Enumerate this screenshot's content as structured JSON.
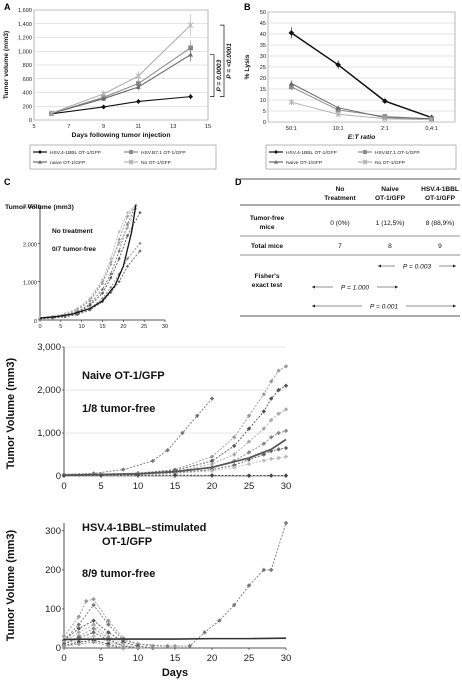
{
  "panel_labels": {
    "a": "A",
    "b": "B",
    "c": "C",
    "d": "D"
  },
  "chart_data": [
    {
      "id": "A",
      "type": "line",
      "xlabel": "Days following tumor injection",
      "ylabel": "Tumor volume (mm3)",
      "xlim": [
        5,
        15
      ],
      "ylim": [
        0,
        1600
      ],
      "xticks": [
        5,
        7,
        9,
        11,
        13,
        15
      ],
      "yticks": [
        0,
        200,
        400,
        600,
        800,
        1000,
        1200,
        1400,
        1600
      ],
      "ytick_labels": [
        "0",
        "200",
        "400",
        "600",
        "800",
        "1,000",
        "1,200",
        "1,400",
        "1,600"
      ],
      "series": [
        {
          "name": "HSV.4-1BBL OT-1/GFP",
          "color": "#111111",
          "marker": "diamond",
          "x": [
            6,
            9,
            11,
            14
          ],
          "y": [
            90,
            190,
            270,
            340
          ],
          "err": [
            20,
            25,
            35,
            40
          ]
        },
        {
          "name": "HSV.B7.1 OT-1/GFP",
          "color": "#8c8c8c",
          "marker": "square",
          "x": [
            6,
            9,
            11,
            14
          ],
          "y": [
            95,
            330,
            530,
            1050
          ],
          "err": [
            20,
            35,
            60,
            110
          ]
        },
        {
          "name": "naive OT-1/GFP",
          "color": "#6a6a6a",
          "marker": "triangle",
          "x": [
            6,
            9,
            11,
            14
          ],
          "y": [
            95,
            310,
            480,
            950
          ],
          "err": [
            20,
            35,
            55,
            100
          ]
        },
        {
          "name": "No OT-1/GFP",
          "color": "#b0b0b0",
          "marker": "star",
          "x": [
            6,
            9,
            11,
            14
          ],
          "y": [
            100,
            380,
            640,
            1380
          ],
          "err": [
            20,
            40,
            70,
            160
          ]
        }
      ],
      "annotations": [
        "P = 0.0003",
        "P = <0.0001"
      ]
    },
    {
      "id": "B",
      "type": "line",
      "xlabel": "E:T ratio",
      "ylabel": "% Lysis",
      "categories": [
        "50:1",
        "10:1",
        "2:1",
        "0,4:1"
      ],
      "ylim": [
        0,
        50
      ],
      "yticks": [
        0,
        5,
        10,
        15,
        20,
        25,
        30,
        35,
        40,
        45,
        50
      ],
      "series": [
        {
          "name": "HSV.4-1BBL OT-1/GFP",
          "color": "#111111",
          "marker": "diamond",
          "values": [
            40.5,
            26,
            9.5,
            2
          ],
          "err": [
            2.5,
            2,
            0.8,
            0.5
          ]
        },
        {
          "name": "HSV.B7.1 OT-1/GFP",
          "color": "#8c8c8c",
          "marker": "square",
          "values": [
            16,
            5.5,
            2.5,
            1.5
          ],
          "err": [
            1.5,
            0.8,
            0.5,
            0.4
          ]
        },
        {
          "name": "Naive OT-1/GFP",
          "color": "#6a6a6a",
          "marker": "triangle",
          "values": [
            17.5,
            6.5,
            2,
            1.5
          ],
          "err": [
            1.5,
            0.8,
            0.5,
            0.4
          ]
        },
        {
          "name": "No OT-1/GFP",
          "color": "#b0b0b0",
          "marker": "star",
          "values": [
            9,
            3.5,
            1.5,
            1
          ],
          "err": [
            1,
            0.5,
            0.4,
            0.3
          ]
        }
      ]
    },
    {
      "id": "C1",
      "type": "line",
      "ylabel": "Tumor Volume (mm3)",
      "xlim": [
        0,
        30
      ],
      "ylim": [
        0,
        3000
      ],
      "xticks": [
        0,
        5,
        10,
        15,
        20,
        25,
        30
      ],
      "yticks": [
        0,
        1000,
        2000,
        3000
      ],
      "ytick_labels": [
        "0",
        "1,000",
        "2,000",
        "3,000"
      ],
      "annotations": [
        "No treatment",
        "0/7 tumor-free"
      ],
      "fit_line": {
        "x": [
          0,
          4,
          8,
          12,
          15,
          18,
          20,
          22,
          23
        ],
        "y": [
          50,
          90,
          160,
          300,
          500,
          900,
          1400,
          2300,
          3000
        ]
      },
      "series": [
        {
          "x": [
            0,
            3,
            6,
            9,
            12,
            15,
            17,
            19,
            21,
            23
          ],
          "y": [
            40,
            70,
            120,
            220,
            420,
            800,
            1200,
            1800,
            2500,
            3000
          ]
        },
        {
          "x": [
            0,
            3,
            6,
            9,
            12,
            15,
            17,
            19,
            21,
            23
          ],
          "y": [
            50,
            80,
            140,
            260,
            500,
            950,
            1450,
            2100,
            2700,
            3000
          ]
        },
        {
          "x": [
            0,
            3,
            6,
            9,
            12,
            15,
            17,
            19,
            21,
            24
          ],
          "y": [
            30,
            60,
            100,
            200,
            380,
            700,
            1100,
            1600,
            2200,
            2800
          ]
        },
        {
          "x": [
            0,
            3,
            6,
            9,
            12,
            15,
            17,
            19,
            21,
            23
          ],
          "y": [
            50,
            90,
            150,
            280,
            540,
            1000,
            1500,
            2000,
            2400,
            2900
          ]
        },
        {
          "x": [
            0,
            3,
            6,
            9,
            12,
            15,
            17,
            19,
            21,
            24
          ],
          "y": [
            40,
            60,
            90,
            160,
            300,
            560,
            850,
            1200,
            1600,
            2000
          ]
        },
        {
          "x": [
            0,
            3,
            6,
            9,
            12,
            15,
            17,
            19,
            21,
            24
          ],
          "y": [
            30,
            50,
            80,
            140,
            260,
            480,
            720,
            1000,
            1400,
            1800
          ]
        },
        {
          "x": [
            0,
            3,
            6,
            9,
            12,
            15,
            17,
            19,
            21,
            23
          ],
          "y": [
            60,
            100,
            170,
            300,
            560,
            1050,
            1600,
            2300,
            2800,
            3000
          ]
        }
      ]
    },
    {
      "id": "C2",
      "type": "line",
      "ylabel": "Tumor Volume (mm3)",
      "xlim": [
        0,
        30
      ],
      "ylim": [
        0,
        3000
      ],
      "xticks": [
        0,
        5,
        10,
        15,
        20,
        25,
        30
      ],
      "yticks": [
        0,
        1000,
        2000,
        3000
      ],
      "ytick_labels": [
        "0",
        "1,000",
        "2,000",
        "3,000"
      ],
      "annotations": [
        "Naive OT-1/GFP",
        "1/8 tumor-free"
      ],
      "fit_line": {
        "x": [
          0,
          10,
          15,
          20,
          25,
          28,
          30
        ],
        "y": [
          20,
          50,
          100,
          200,
          420,
          620,
          850
        ]
      },
      "series": [
        {
          "x": [
            0,
            4,
            8,
            12,
            14,
            16,
            18,
            20
          ],
          "y": [
            40,
            60,
            150,
            350,
            600,
            1000,
            1400,
            1800
          ]
        },
        {
          "x": [
            0,
            5,
            10,
            15,
            20,
            23,
            25,
            27,
            28,
            29,
            30
          ],
          "y": [
            30,
            40,
            70,
            150,
            450,
            900,
            1400,
            1900,
            2200,
            2450,
            2550
          ]
        },
        {
          "x": [
            0,
            5,
            10,
            15,
            20,
            23,
            25,
            27,
            28,
            29,
            30
          ],
          "y": [
            20,
            30,
            60,
            130,
            350,
            700,
            1100,
            1500,
            1800,
            2000,
            2100
          ]
        },
        {
          "x": [
            0,
            5,
            10,
            15,
            20,
            23,
            25,
            27,
            28,
            29,
            30
          ],
          "y": [
            20,
            30,
            50,
            100,
            280,
            500,
            800,
            1100,
            1300,
            1450,
            1550
          ]
        },
        {
          "x": [
            0,
            5,
            10,
            15,
            20,
            23,
            25,
            27,
            28,
            29,
            30
          ],
          "y": [
            30,
            40,
            50,
            90,
            200,
            350,
            550,
            750,
            900,
            1000,
            1050
          ]
        },
        {
          "x": [
            0,
            5,
            10,
            15,
            20,
            23,
            25,
            27,
            28,
            29,
            30
          ],
          "y": [
            20,
            25,
            40,
            70,
            150,
            250,
            380,
            500,
            580,
            620,
            650
          ]
        },
        {
          "x": [
            0,
            5,
            10,
            15,
            20,
            23,
            25,
            27,
            28,
            29,
            30
          ],
          "y": [
            20,
            25,
            35,
            60,
            120,
            200,
            280,
            360,
            400,
            420,
            450
          ]
        },
        {
          "x": [
            0,
            5,
            10,
            15,
            20,
            25,
            28,
            30
          ],
          "y": [
            10,
            15,
            20,
            20,
            15,
            10,
            10,
            10
          ]
        }
      ]
    },
    {
      "id": "C3",
      "type": "line",
      "xlabel": "Days",
      "ylabel": "Tumor Volume (mm3)",
      "xlim": [
        0,
        30
      ],
      "ylim": [
        0,
        320
      ],
      "xticks": [
        0,
        5,
        10,
        15,
        20,
        25,
        30
      ],
      "yticks": [
        0,
        100,
        200,
        300
      ],
      "ytick_labels": [
        "0",
        "100",
        "200",
        "300"
      ],
      "annotations": [
        "HSV.4-1BBL–stimulated",
        "OT-1/GFP",
        "8/9 tumor-free"
      ],
      "fit_line": {
        "x": [
          0,
          5,
          10,
          15,
          20,
          25,
          30
        ],
        "y": [
          22,
          23,
          23,
          23,
          24,
          24,
          25
        ]
      },
      "series": [
        {
          "x": [
            0,
            2,
            4,
            6,
            8,
            10,
            14,
            17,
            19,
            21,
            23,
            25,
            27,
            28,
            30
          ],
          "y": [
            20,
            60,
            110,
            60,
            20,
            10,
            5,
            5,
            40,
            70,
            110,
            160,
            200,
            200,
            320
          ]
        },
        {
          "x": [
            0,
            2,
            3,
            4,
            6,
            8,
            10,
            12,
            15
          ],
          "y": [
            30,
            80,
            120,
            125,
            70,
            25,
            10,
            5,
            5
          ]
        },
        {
          "x": [
            0,
            2,
            4,
            6,
            8,
            10,
            12
          ],
          "y": [
            20,
            50,
            70,
            40,
            15,
            5,
            0
          ]
        },
        {
          "x": [
            0,
            2,
            4,
            6,
            8,
            10,
            12
          ],
          "y": [
            15,
            40,
            60,
            30,
            10,
            0,
            0
          ]
        },
        {
          "x": [
            0,
            2,
            4,
            6,
            8,
            10,
            12
          ],
          "y": [
            10,
            30,
            50,
            25,
            5,
            0,
            0
          ]
        },
        {
          "x": [
            0,
            2,
            4,
            6,
            8,
            10
          ],
          "y": [
            10,
            25,
            40,
            20,
            5,
            0
          ]
        },
        {
          "x": [
            0,
            2,
            4,
            6,
            8,
            10
          ],
          "y": [
            5,
            20,
            30,
            15,
            5,
            0
          ]
        },
        {
          "x": [
            0,
            2,
            4,
            6,
            8,
            10
          ],
          "y": [
            5,
            15,
            20,
            10,
            0,
            0
          ]
        },
        {
          "x": [
            0,
            2,
            4,
            6,
            8,
            10
          ],
          "y": [
            5,
            10,
            15,
            5,
            0,
            0
          ]
        }
      ]
    },
    {
      "id": "D",
      "type": "table",
      "columns": [
        "",
        "No Treatment",
        "Naive OT-1/GFP",
        "HSV.4-1BBL OT-1/GFP"
      ],
      "rows": [
        [
          "Tumor-free mice",
          "0 (0%)",
          "1 (12,5%)",
          "8 (88,9%)"
        ],
        [
          "Total mice",
          "7",
          "8",
          "9"
        ]
      ],
      "stats_label": "Fisher's exact test",
      "comparisons": [
        {
          "between": [
            "Naive OT-1/GFP",
            "HSV.4-1BBL OT-1/GFP"
          ],
          "label": "P = 0.003"
        },
        {
          "between": [
            "No Treatment",
            "Naive OT-1/GFP"
          ],
          "label": "P = 1.000"
        },
        {
          "between": [
            "No Treatment",
            "HSV.4-1BBL OT-1/GFP"
          ],
          "label": "P = 0.001"
        }
      ]
    }
  ],
  "colors": {
    "black": "#111111",
    "dark_gray": "#6a6a6a",
    "mid_gray": "#8c8c8c",
    "light_gray": "#b0b0b0"
  }
}
